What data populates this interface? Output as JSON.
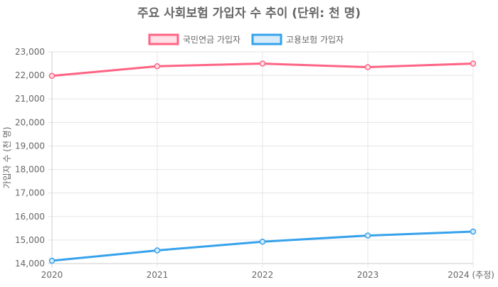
{
  "chart_data": {
    "type": "line",
    "title": "주요 사회보험 가입자 수 추이 (단위: 천 명)",
    "xlabel": "",
    "ylabel": "가입자 수 (천 명)",
    "categories": [
      "2020",
      "2021",
      "2022",
      "2023",
      "2024 (추정)"
    ],
    "ylim": [
      14000,
      23000
    ],
    "yticks": [
      "14,000",
      "15,000",
      "16,000",
      "17,000",
      "18,000",
      "19,000",
      "20,000",
      "21,000",
      "22,000",
      "23,000"
    ],
    "grid": true,
    "legend_position": "top",
    "series": [
      {
        "name": "국민연금 가입자",
        "color": "#ff6384",
        "fill": "#ffe0e6",
        "values": [
          21980,
          22390,
          22500,
          22350,
          22500
        ]
      },
      {
        "name": "고용보험 가입자",
        "color": "#36a2eb",
        "fill": "#d7ecfb",
        "values": [
          14120,
          14560,
          14930,
          15190,
          15360
        ]
      }
    ]
  }
}
